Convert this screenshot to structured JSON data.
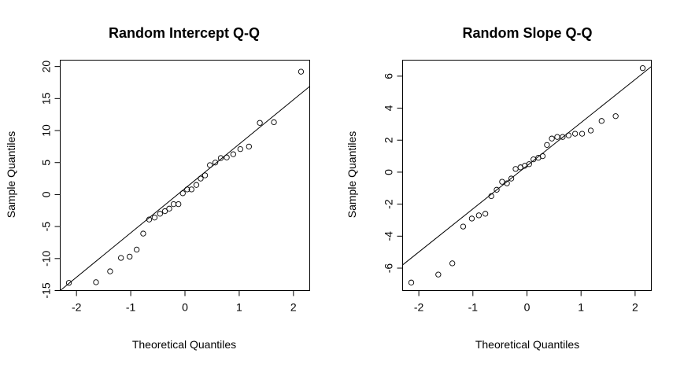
{
  "chart_data": [
    {
      "type": "scatter",
      "title": "Random Intercept Q-Q",
      "xlabel": "Theoretical Quantiles",
      "ylabel": "Sample Quantiles",
      "xlim": [
        -2.3,
        2.3
      ],
      "ylim": [
        -15,
        21
      ],
      "xticks": [
        -2,
        -1,
        0,
        1,
        2
      ],
      "yticks": [
        -15,
        -10,
        -5,
        0,
        5,
        10,
        15,
        20
      ],
      "x": [
        -2.14,
        -1.64,
        -1.38,
        -1.18,
        -1.02,
        -0.89,
        -0.77,
        -0.66,
        -0.56,
        -0.46,
        -0.37,
        -0.29,
        -0.21,
        -0.12,
        -0.04,
        0.04,
        0.12,
        0.21,
        0.29,
        0.37,
        0.46,
        0.56,
        0.66,
        0.77,
        0.89,
        1.02,
        1.18,
        1.38,
        1.64,
        2.14
      ],
      "y": [
        -13.8,
        -13.7,
        -12.0,
        -9.9,
        -9.7,
        -8.6,
        -6.1,
        -3.9,
        -3.6,
        -3.0,
        -2.6,
        -2.2,
        -1.5,
        -1.5,
        0.2,
        0.8,
        0.8,
        1.5,
        2.5,
        3.0,
        4.6,
        5.0,
        5.7,
        5.8,
        6.3,
        7.1,
        7.5,
        11.2,
        11.3,
        19.2
      ],
      "reference_line": {
        "x": [
          -2.3,
          2.3
        ],
        "y": [
          -15.0,
          16.9
        ]
      },
      "grid": false
    },
    {
      "type": "scatter",
      "title": "Random Slope Q-Q",
      "xlabel": "Theoretical Quantiles",
      "ylabel": "Sample Quantiles",
      "xlim": [
        -2.3,
        2.3
      ],
      "ylim": [
        -7.4,
        7.0
      ],
      "xticks": [
        -2,
        -1,
        0,
        1,
        2
      ],
      "yticks": [
        -6,
        -4,
        -2,
        0,
        2,
        4,
        6
      ],
      "x": [
        -2.14,
        -1.64,
        -1.38,
        -1.18,
        -1.02,
        -0.89,
        -0.77,
        -0.66,
        -0.56,
        -0.46,
        -0.37,
        -0.29,
        -0.21,
        -0.12,
        -0.04,
        0.04,
        0.12,
        0.21,
        0.29,
        0.37,
        0.46,
        0.56,
        0.66,
        0.77,
        0.89,
        1.02,
        1.18,
        1.38,
        1.64,
        2.14
      ],
      "y": [
        -6.9,
        -6.4,
        -5.7,
        -3.4,
        -2.9,
        -2.7,
        -2.6,
        -1.5,
        -1.1,
        -0.6,
        -0.7,
        -0.4,
        0.2,
        0.3,
        0.4,
        0.5,
        0.8,
        0.9,
        1.0,
        1.7,
        2.1,
        2.2,
        2.2,
        2.3,
        2.4,
        2.4,
        2.6,
        3.2,
        3.5,
        6.5
      ],
      "reference_line": {
        "x": [
          -2.3,
          2.3
        ],
        "y": [
          -5.8,
          6.6
        ]
      },
      "grid": false
    }
  ]
}
